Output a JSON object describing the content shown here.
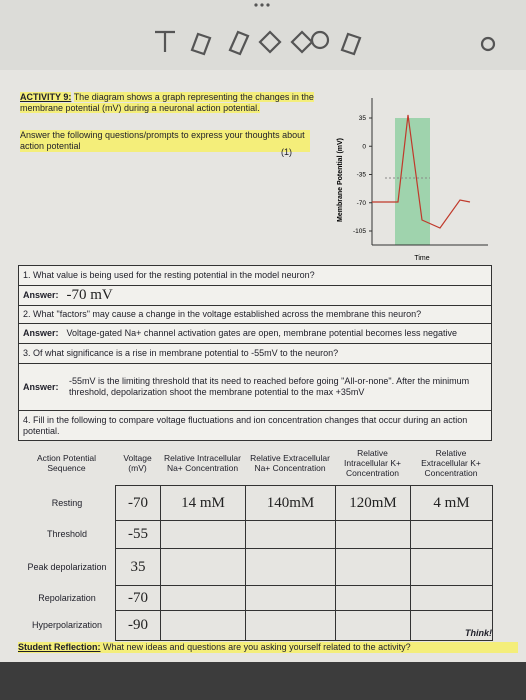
{
  "activity": {
    "label": "ACTIVITY 9:",
    "text": "The diagram shows a graph representing the changes in the membrane potential (mV) during a neuronal action potential."
  },
  "prompt": {
    "text": "Answer the following questions/prompts to express your thoughts about action potential",
    "points": "(1)"
  },
  "graph": {
    "y_label": "Membrane Potential (mV)",
    "yticks": [
      35,
      0,
      -35,
      -70,
      -105
    ],
    "x_label": "Time"
  },
  "questions": [
    {
      "question": "1. What value is being used for the resting potential in the model neuron?",
      "answer_label": "Answer:",
      "answer": "-70 mV"
    },
    {
      "question": "2. What \"factors\" may cause a change in the voltage established across the membrane this neuron?",
      "answer_label": "Answer:",
      "answer": "Voltage-gated Na+ channel activation gates are open, membrane potential becomes less negative"
    },
    {
      "question": "3. Of what significance is a rise in membrane potential to -55mV to the neuron?",
      "answer_label": "Answer:",
      "answer": "-55mV is the limiting threshold that its need to reached before going \"All-or-none\". After the minimum threshold, depolarization shoot the membrane potential to the max +35mV"
    }
  ],
  "table": {
    "intro": "4. Fill in the following to compare voltage fluctuations and ion concentration changes that occur during an action potential.",
    "headers": [
      "Action Potential Sequence",
      "Voltage (mV)",
      "Relative Intracellular Na+ Concentration",
      "Relative Extracellular Na+ Concentration",
      "Relative Intracellular K+ Concentration",
      "Relative Extracellular K+ Concentration"
    ],
    "rows": [
      [
        "Resting",
        "-70",
        "14 mM",
        "140mM",
        "120mM",
        "4 mM"
      ],
      [
        "Threshold",
        "-55"
      ],
      [
        "Peak depolarization",
        "35"
      ],
      [
        "Repolarization",
        "-70"
      ],
      [
        "Hyperpolarization",
        "-90"
      ]
    ]
  },
  "reflection": {
    "label": "Student Reflection:",
    "text": "What new ideas and questions are you asking yourself related to the activity?",
    "note": "Think!"
  }
}
